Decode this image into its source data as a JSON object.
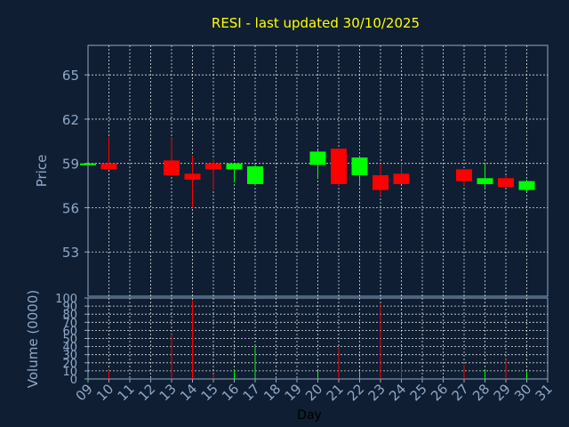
{
  "chart_data": {
    "type": "candlestick",
    "title": "RESI - last updated 30/10/2025",
    "xlabel": "Day",
    "ylabel": "Price",
    "volume_ylabel": "Volume (0000)",
    "x_ticks": [
      "09",
      "10",
      "11",
      "12",
      "13",
      "14",
      "15",
      "16",
      "17",
      "18",
      "19",
      "20",
      "21",
      "22",
      "23",
      "24",
      "25",
      "26",
      "27",
      "28",
      "29",
      "30",
      "31"
    ],
    "price_ticks": [
      53,
      56,
      59,
      62,
      65
    ],
    "price_ylim": [
      50.0,
      67.0
    ],
    "volume_ticks": [
      0,
      10,
      20,
      30,
      40,
      50,
      60,
      70,
      80,
      90,
      100
    ],
    "volume_ylim": [
      0,
      100
    ],
    "grid": true,
    "colors": {
      "up": "#00ff00",
      "down": "#ff0000",
      "title": "#ffff00",
      "background": "#0f1e32",
      "axis_text": "#8fa8c8"
    },
    "candles": [
      {
        "day": 9,
        "open": 59.0,
        "high": 59.0,
        "low": 59.0,
        "close": 59.0,
        "volume": 2,
        "dir": "up"
      },
      {
        "day": 10,
        "open": 59.0,
        "high": 60.8,
        "low": 58.6,
        "close": 58.6,
        "volume": 12,
        "dir": "down"
      },
      {
        "day": 13,
        "open": 59.2,
        "high": 60.7,
        "low": 58.2,
        "close": 58.2,
        "volume": 55,
        "dir": "down"
      },
      {
        "day": 14,
        "open": 58.3,
        "high": 59.5,
        "low": 56.0,
        "close": 57.9,
        "volume": 97,
        "dir": "down"
      },
      {
        "day": 15,
        "open": 59.0,
        "high": 59.3,
        "low": 57.2,
        "close": 58.6,
        "volume": 6,
        "dir": "down"
      },
      {
        "day": 16,
        "open": 58.6,
        "high": 59.0,
        "low": 57.7,
        "close": 59.0,
        "volume": 12,
        "dir": "up"
      },
      {
        "day": 17,
        "open": 57.6,
        "high": 58.9,
        "low": 57.5,
        "close": 58.8,
        "volume": 42,
        "dir": "up"
      },
      {
        "day": 20,
        "open": 58.9,
        "high": 59.9,
        "low": 58.0,
        "close": 59.8,
        "volume": 10,
        "dir": "up"
      },
      {
        "day": 21,
        "open": 60.0,
        "high": 60.0,
        "low": 57.5,
        "close": 57.6,
        "volume": 38,
        "dir": "down"
      },
      {
        "day": 22,
        "open": 58.2,
        "high": 59.5,
        "low": 57.6,
        "close": 59.4,
        "volume": 9,
        "dir": "up"
      },
      {
        "day": 23,
        "open": 58.2,
        "high": 59.0,
        "low": 56.8,
        "close": 57.2,
        "volume": 92,
        "dir": "down"
      },
      {
        "day": 24,
        "open": 58.3,
        "high": 59.0,
        "low": 57.6,
        "close": 57.6,
        "volume": 18,
        "dir": "down"
      },
      {
        "day": 27,
        "open": 58.6,
        "high": 58.6,
        "low": 57.5,
        "close": 57.8,
        "volume": 17,
        "dir": "down"
      },
      {
        "day": 28,
        "open": 57.6,
        "high": 59.0,
        "low": 57.3,
        "close": 58.0,
        "volume": 12,
        "dir": "up"
      },
      {
        "day": 29,
        "open": 58.0,
        "high": 58.2,
        "low": 57.4,
        "close": 57.4,
        "volume": 24,
        "dir": "down"
      },
      {
        "day": 30,
        "open": 57.2,
        "high": 57.9,
        "low": 57.1,
        "close": 57.8,
        "volume": 9,
        "dir": "up"
      }
    ]
  }
}
